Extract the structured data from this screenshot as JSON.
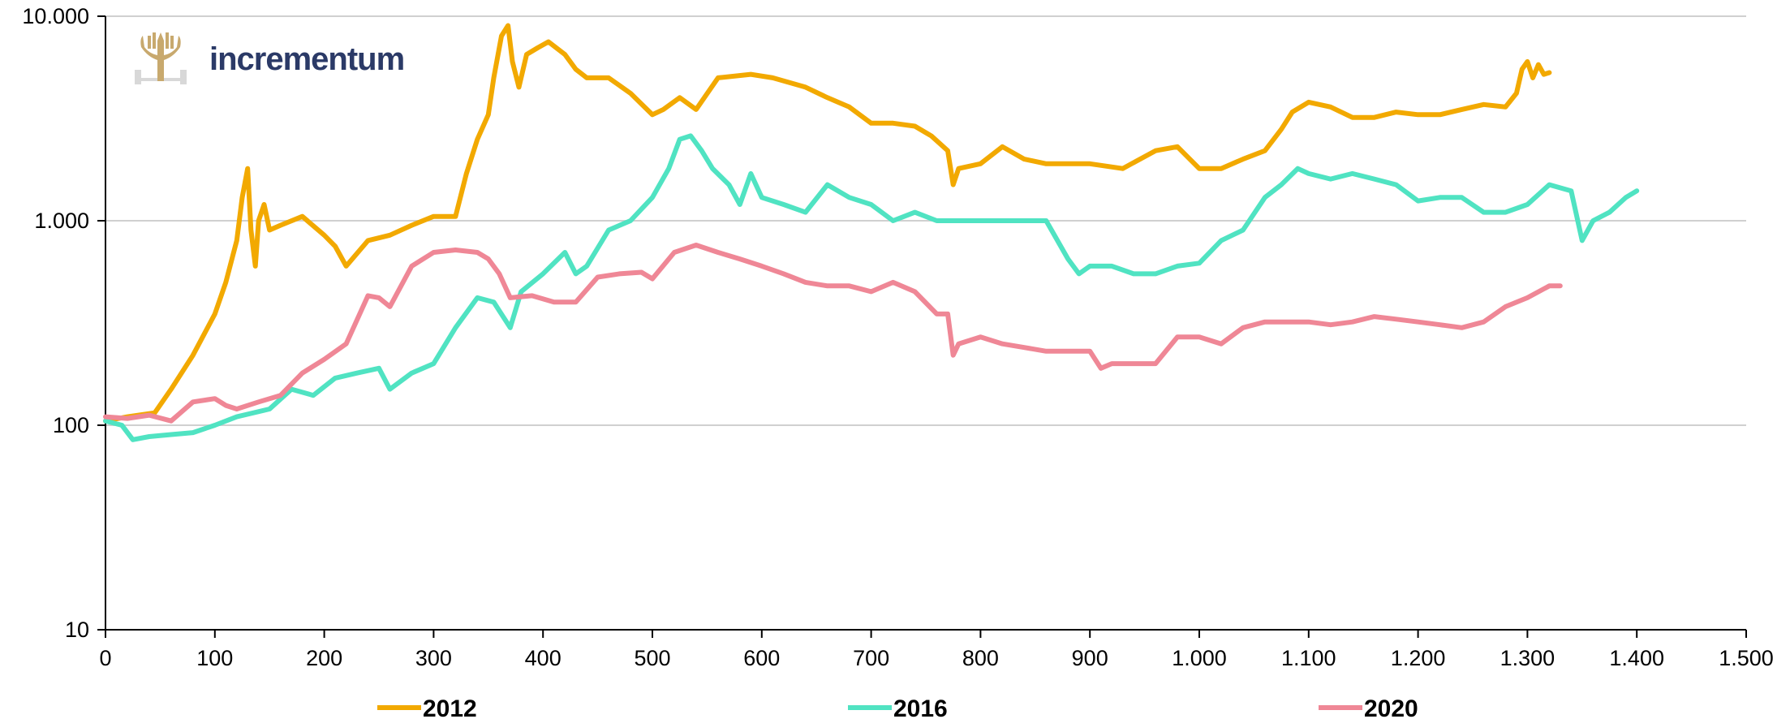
{
  "brand": {
    "name": "incrementum",
    "icon": "tree-logo-icon",
    "color": "#2b3a67",
    "icon_color": "#c8a96e"
  },
  "chart_data": {
    "type": "line",
    "title": "",
    "xlabel": "",
    "ylabel": "",
    "xlim": [
      0,
      1500
    ],
    "ylim": [
      10,
      10000
    ],
    "y_scale": "log",
    "grid": "horizontal",
    "legend_placement": "bottom",
    "x_ticks": [
      0,
      100,
      200,
      300,
      400,
      500,
      600,
      700,
      800,
      900,
      1000,
      1100,
      1200,
      1300,
      1400,
      1500
    ],
    "x_tick_labels": [
      "0",
      "100",
      "200",
      "300",
      "400",
      "500",
      "600",
      "700",
      "800",
      "900",
      "1.000",
      "1.100",
      "1.200",
      "1.300",
      "1.400",
      "1.500"
    ],
    "y_ticks": [
      10,
      100,
      1000,
      10000
    ],
    "y_tick_labels": [
      "10",
      "100",
      "1.000",
      "10.000"
    ],
    "series": [
      {
        "name": "2012",
        "color": "#f2a900",
        "x": [
          0,
          20,
          45,
          60,
          80,
          100,
          110,
          120,
          125,
          130,
          133,
          137,
          140,
          145,
          150,
          160,
          180,
          200,
          210,
          220,
          240,
          260,
          280,
          300,
          320,
          330,
          340,
          350,
          355,
          362,
          368,
          372,
          378,
          385,
          395,
          405,
          420,
          430,
          440,
          460,
          480,
          500,
          510,
          525,
          540,
          560,
          590,
          610,
          640,
          660,
          680,
          700,
          720,
          740,
          755,
          770,
          775,
          780,
          800,
          820,
          840,
          860,
          880,
          900,
          930,
          960,
          980,
          1000,
          1020,
          1040,
          1060,
          1075,
          1085,
          1100,
          1120,
          1140,
          1160,
          1180,
          1200,
          1220,
          1240,
          1260,
          1280,
          1290,
          1295,
          1300,
          1305,
          1310,
          1315,
          1320
        ],
        "values": [
          105,
          110,
          115,
          150,
          220,
          350,
          500,
          800,
          1300,
          1800,
          900,
          600,
          1000,
          1200,
          900,
          950,
          1050,
          850,
          750,
          600,
          800,
          850,
          950,
          1050,
          1050,
          1700,
          2500,
          3300,
          5000,
          8000,
          9000,
          6000,
          4500,
          6500,
          7000,
          7500,
          6500,
          5500,
          5000,
          5000,
          4200,
          3300,
          3500,
          4000,
          3500,
          5000,
          5200,
          5000,
          4500,
          4000,
          3600,
          3000,
          3000,
          2900,
          2600,
          2200,
          1500,
          1800,
          1900,
          2300,
          2000,
          1900,
          1900,
          1900,
          1800,
          2200,
          2300,
          1800,
          1800,
          2000,
          2200,
          2800,
          3400,
          3800,
          3600,
          3200,
          3200,
          3400,
          3300,
          3300,
          3500,
          3700,
          3600,
          4200,
          5500,
          6000,
          5000,
          5800,
          5200,
          5300
        ]
      },
      {
        "name": "2016",
        "color": "#50e3c2",
        "x": [
          0,
          15,
          25,
          40,
          60,
          80,
          100,
          120,
          150,
          170,
          190,
          210,
          230,
          250,
          260,
          280,
          300,
          320,
          340,
          355,
          370,
          380,
          400,
          420,
          430,
          440,
          460,
          480,
          500,
          515,
          525,
          535,
          545,
          555,
          570,
          580,
          590,
          600,
          620,
          640,
          660,
          680,
          700,
          720,
          740,
          760,
          780,
          800,
          820,
          840,
          860,
          880,
          890,
          900,
          920,
          940,
          960,
          980,
          1000,
          1020,
          1040,
          1060,
          1075,
          1090,
          1100,
          1120,
          1140,
          1160,
          1180,
          1200,
          1220,
          1240,
          1260,
          1280,
          1300,
          1320,
          1340,
          1350,
          1360,
          1375,
          1390,
          1400
        ],
        "values": [
          105,
          100,
          85,
          88,
          90,
          92,
          100,
          110,
          120,
          150,
          140,
          170,
          180,
          190,
          150,
          180,
          200,
          300,
          420,
          400,
          300,
          450,
          550,
          700,
          550,
          600,
          900,
          1000,
          1300,
          1800,
          2500,
          2600,
          2200,
          1800,
          1500,
          1200,
          1700,
          1300,
          1200,
          1100,
          1500,
          1300,
          1200,
          1000,
          1100,
          1000,
          1000,
          1000,
          1000,
          1000,
          1000,
          650,
          550,
          600,
          600,
          550,
          550,
          600,
          620,
          800,
          900,
          1300,
          1500,
          1800,
          1700,
          1600,
          1700,
          1600,
          1500,
          1250,
          1300,
          1300,
          1100,
          1100,
          1200,
          1500,
          1400,
          800,
          1000,
          1100,
          1300,
          1400
        ]
      },
      {
        "name": "2020",
        "color": "#ef8796",
        "x": [
          0,
          20,
          40,
          60,
          80,
          100,
          110,
          120,
          140,
          160,
          180,
          200,
          220,
          240,
          250,
          260,
          280,
          300,
          320,
          340,
          350,
          360,
          370,
          390,
          410,
          430,
          450,
          470,
          490,
          500,
          520,
          540,
          560,
          580,
          600,
          620,
          640,
          660,
          680,
          700,
          720,
          740,
          760,
          770,
          775,
          780,
          800,
          820,
          840,
          860,
          880,
          900,
          910,
          920,
          940,
          960,
          980,
          1000,
          1020,
          1040,
          1060,
          1080,
          1100,
          1120,
          1140,
          1160,
          1180,
          1200,
          1220,
          1240,
          1260,
          1280,
          1300,
          1320,
          1330
        ],
        "values": [
          110,
          108,
          112,
          105,
          130,
          135,
          125,
          120,
          130,
          140,
          180,
          210,
          250,
          430,
          420,
          380,
          600,
          700,
          720,
          700,
          650,
          550,
          420,
          430,
          400,
          400,
          530,
          550,
          560,
          520,
          700,
          760,
          700,
          650,
          600,
          550,
          500,
          480,
          480,
          450,
          500,
          450,
          350,
          350,
          220,
          250,
          270,
          250,
          240,
          230,
          230,
          230,
          190,
          200,
          200,
          200,
          270,
          270,
          250,
          300,
          320,
          320,
          320,
          310,
          320,
          340,
          330,
          320,
          310,
          300,
          320,
          380,
          420,
          480,
          480
        ]
      }
    ]
  }
}
